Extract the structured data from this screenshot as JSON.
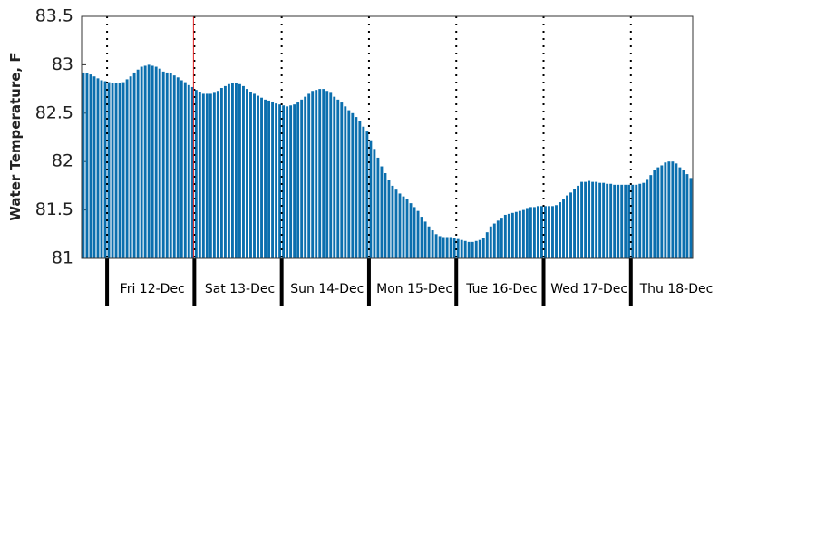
{
  "chart_data": {
    "type": "bar",
    "ylabel": "Water Temperature, F",
    "categories": [
      null,
      null,
      null,
      null,
      null,
      null,
      null,
      null,
      null,
      null,
      null,
      null,
      null,
      null,
      null,
      null,
      null,
      null,
      null,
      "Fri 12-Dec",
      null,
      null,
      null,
      null,
      null,
      null,
      null,
      null,
      null,
      null,
      null,
      null,
      null,
      null,
      null,
      null,
      null,
      null,
      null,
      null,
      null,
      null,
      null,
      "Sat 13-Dec",
      null,
      null,
      null,
      null,
      null,
      null,
      null,
      null,
      null,
      null,
      null,
      null,
      null,
      null,
      null,
      null,
      null,
      null,
      null,
      null,
      null,
      null,
      null,
      "Sun 14-Dec",
      null,
      null,
      null,
      null,
      null,
      null,
      null,
      null,
      null,
      null,
      null,
      null,
      null,
      null,
      null,
      null,
      null,
      null,
      null,
      null,
      null,
      null,
      null,
      "Mon 15-Dec",
      null,
      null,
      null,
      null,
      null,
      null,
      null,
      null,
      null,
      null,
      null,
      null,
      null,
      null,
      null,
      null,
      null,
      null,
      null,
      null,
      null,
      null,
      null,
      "Tue 16-Dec",
      null,
      null,
      null,
      null,
      null,
      null,
      null,
      null,
      null,
      null,
      null,
      null,
      null,
      null,
      null,
      null,
      null,
      null,
      null,
      null,
      null,
      null,
      null,
      "Wed 17-Dec",
      null,
      null,
      null,
      null,
      null,
      null,
      null,
      null,
      null,
      null,
      null,
      null,
      null,
      null,
      null,
      null,
      null,
      null,
      null,
      null,
      null,
      null,
      null,
      "Thu 18-Dec",
      null,
      null,
      null,
      null
    ],
    "values": [
      82.92,
      82.91,
      82.9,
      82.88,
      82.86,
      82.84,
      82.83,
      82.82,
      82.81,
      82.81,
      82.81,
      82.82,
      82.85,
      82.88,
      82.92,
      82.95,
      82.98,
      82.99,
      83.0,
      82.99,
      82.98,
      82.96,
      82.93,
      82.92,
      82.91,
      82.89,
      82.87,
      82.84,
      82.82,
      82.79,
      82.77,
      82.74,
      82.72,
      82.7,
      82.7,
      82.7,
      82.71,
      82.73,
      82.76,
      82.78,
      82.8,
      82.81,
      82.81,
      82.8,
      82.78,
      82.75,
      82.72,
      82.7,
      82.68,
      82.66,
      82.64,
      82.63,
      82.62,
      82.6,
      82.59,
      82.58,
      82.57,
      82.58,
      82.59,
      82.61,
      82.64,
      82.67,
      82.7,
      82.73,
      82.74,
      82.75,
      82.75,
      82.73,
      82.71,
      82.67,
      82.64,
      82.61,
      82.57,
      82.53,
      82.5,
      82.46,
      82.42,
      82.36,
      82.31,
      82.22,
      82.13,
      82.04,
      81.95,
      81.88,
      81.81,
      81.75,
      81.71,
      81.67,
      81.64,
      81.61,
      81.57,
      81.53,
      81.49,
      81.43,
      81.38,
      81.33,
      81.29,
      81.25,
      81.23,
      81.22,
      81.22,
      81.22,
      81.21,
      81.2,
      81.19,
      81.18,
      81.17,
      81.17,
      81.18,
      81.19,
      81.21,
      81.27,
      81.33,
      81.36,
      81.39,
      81.42,
      81.45,
      81.46,
      81.47,
      81.48,
      81.49,
      81.5,
      81.52,
      81.53,
      81.53,
      81.54,
      81.54,
      81.54,
      81.54,
      81.54,
      81.55,
      81.58,
      81.61,
      81.65,
      81.68,
      81.72,
      81.75,
      81.79,
      81.79,
      81.8,
      81.79,
      81.79,
      81.78,
      81.78,
      81.77,
      81.77,
      81.76,
      81.76,
      81.76,
      81.76,
      81.76,
      81.76,
      81.76,
      81.77,
      81.78,
      81.82,
      81.86,
      81.91,
      81.94,
      81.96,
      81.99,
      82.0,
      82.0,
      81.98,
      81.94,
      81.91,
      81.87,
      81.83
    ],
    "color": "#0b6fae",
    "ylim": [
      81,
      83.5
    ],
    "yticks": [
      81,
      81.5,
      82,
      82.5,
      83,
      83.5
    ]
  }
}
